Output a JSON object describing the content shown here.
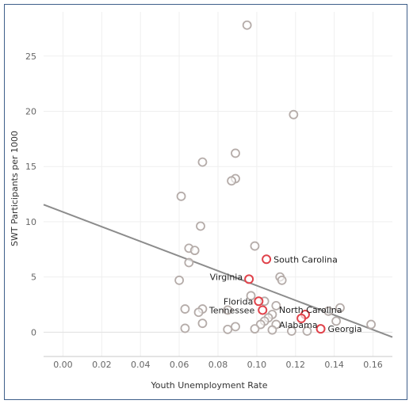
{
  "chart_data": {
    "type": "scatter",
    "xlabel": "Youth Unemployment Rate",
    "ylabel": "SWT Participants per 1000",
    "xlim": [
      -0.01,
      0.17
    ],
    "ylim": [
      -2.2,
      29
    ],
    "x_ticks": [
      "0.00",
      "0.02",
      "0.04",
      "0.06",
      "0.08",
      "0.10",
      "0.12",
      "0.14",
      "0.16"
    ],
    "y_ticks": [
      "0",
      "5",
      "10",
      "15",
      "20",
      "25"
    ],
    "x_tick_values": [
      0,
      0.02,
      0.04,
      0.06,
      0.08,
      0.1,
      0.12,
      0.14,
      0.16
    ],
    "y_tick_values": [
      0,
      5,
      10,
      15,
      20,
      25
    ],
    "grid": true,
    "colors": {
      "point": "#b5aca9",
      "highlight": "#e0424a",
      "trend": "#8c8c8c",
      "border": "#3e5f8a"
    },
    "trend_line": {
      "x": [
        -0.01,
        0.17
      ],
      "y": [
        11.55,
        -0.45
      ]
    },
    "series": [
      {
        "points": [
          [
            0.095,
            27.8
          ],
          [
            0.119,
            19.7
          ],
          [
            0.089,
            16.2
          ],
          [
            0.072,
            15.4
          ],
          [
            0.089,
            13.9
          ],
          [
            0.087,
            13.7
          ],
          [
            0.061,
            12.3
          ],
          [
            0.071,
            9.6
          ],
          [
            0.099,
            7.8
          ],
          [
            0.065,
            7.6
          ],
          [
            0.068,
            7.4
          ],
          [
            0.065,
            6.3
          ],
          [
            0.112,
            5.0
          ],
          [
            0.113,
            4.7
          ],
          [
            0.06,
            4.7
          ],
          [
            0.097,
            3.3
          ],
          [
            0.104,
            2.8
          ],
          [
            0.11,
            2.4
          ],
          [
            0.072,
            2.1
          ],
          [
            0.063,
            2.1
          ],
          [
            0.07,
            1.8
          ],
          [
            0.085,
            2.0
          ],
          [
            0.108,
            1.6
          ],
          [
            0.106,
            1.3
          ],
          [
            0.104,
            1.0
          ],
          [
            0.102,
            0.7
          ],
          [
            0.11,
            0.7
          ],
          [
            0.137,
            1.9
          ],
          [
            0.143,
            2.2
          ],
          [
            0.141,
            1.0
          ],
          [
            0.072,
            0.8
          ],
          [
            0.089,
            0.5
          ],
          [
            0.085,
            0.25
          ],
          [
            0.063,
            0.35
          ],
          [
            0.099,
            0.3
          ],
          [
            0.108,
            0.2
          ],
          [
            0.118,
            0.1
          ],
          [
            0.126,
            0.1
          ],
          [
            0.159,
            0.7
          ]
        ]
      },
      {
        "points": [
          [
            0.105,
            6.6
          ],
          [
            0.096,
            4.8
          ],
          [
            0.101,
            2.8
          ],
          [
            0.125,
            1.6
          ],
          [
            0.103,
            2.0
          ],
          [
            0.123,
            1.25
          ],
          [
            0.133,
            0.3
          ]
        ],
        "labels": [
          "South Carolina",
          "Virginia",
          "Florida",
          "North Carolina",
          "Tennessee",
          "Alabama",
          "Georgia"
        ]
      }
    ]
  }
}
